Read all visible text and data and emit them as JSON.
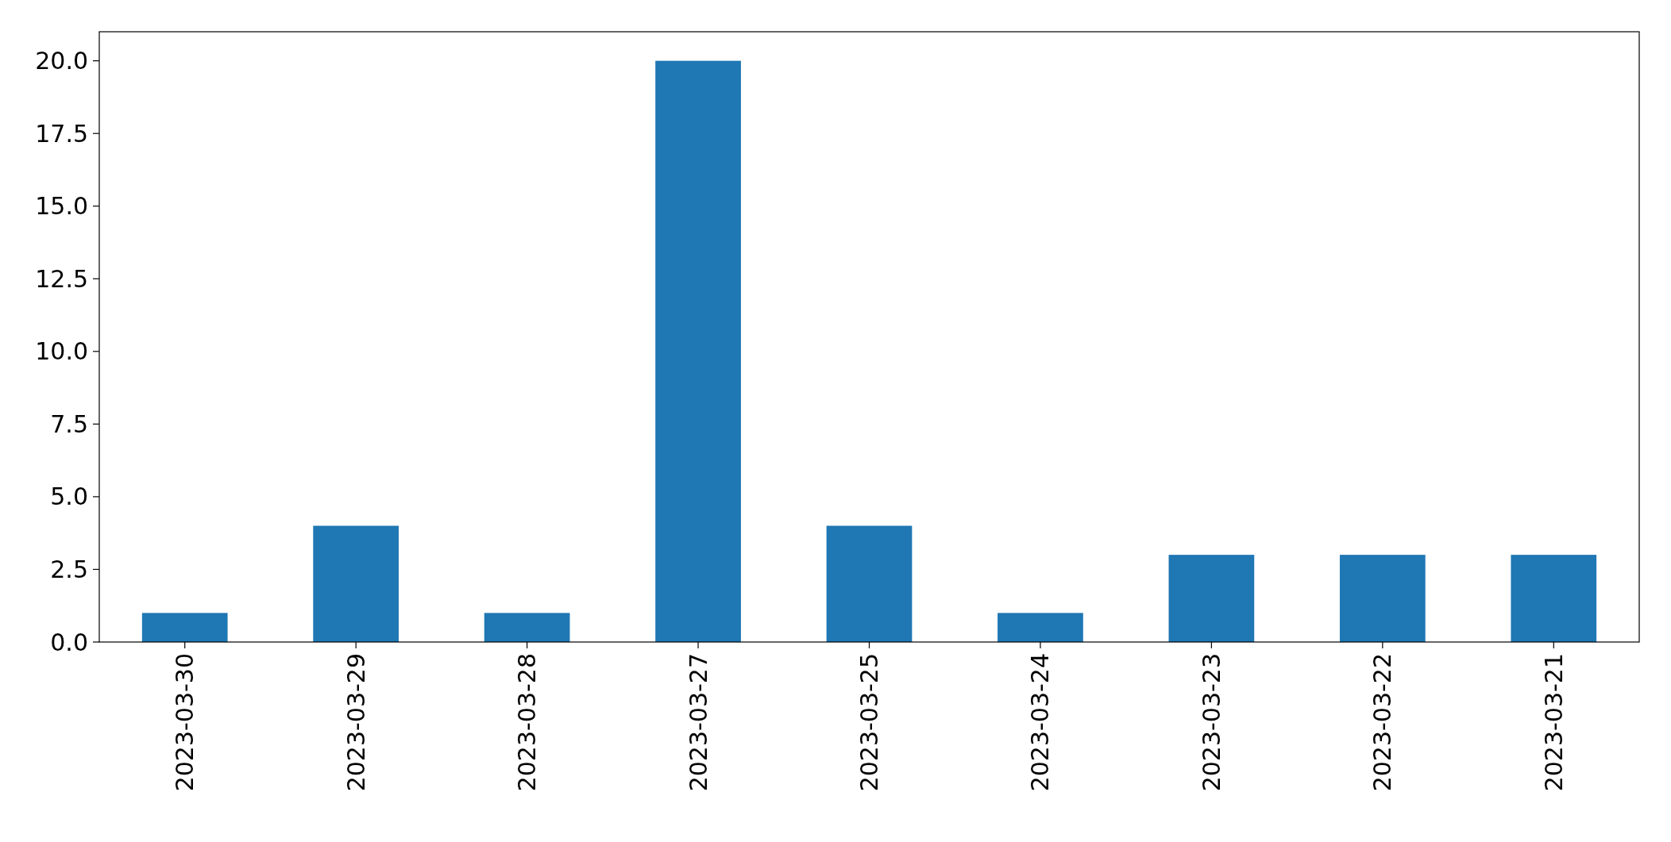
{
  "chart_data": {
    "type": "bar",
    "categories": [
      "2023-03-30",
      "2023-03-29",
      "2023-03-28",
      "2023-03-27",
      "2023-03-25",
      "2023-03-24",
      "2023-03-23",
      "2023-03-22",
      "2023-03-21"
    ],
    "values": [
      1,
      4,
      1,
      20,
      4,
      1,
      3,
      3,
      3
    ],
    "color": "#1f77b4",
    "ylim": [
      0,
      21
    ],
    "yticks": [
      {
        "value": 0,
        "label": "0.0"
      },
      {
        "value": 2.5,
        "label": "2.5"
      },
      {
        "value": 5,
        "label": "5.0"
      },
      {
        "value": 7.5,
        "label": "7.5"
      },
      {
        "value": 10,
        "label": "10.0"
      },
      {
        "value": 12.5,
        "label": "12.5"
      },
      {
        "value": 15,
        "label": "15.0"
      },
      {
        "value": 17.5,
        "label": "17.5"
      },
      {
        "value": 20,
        "label": "20.0"
      }
    ],
    "grid": false
  }
}
